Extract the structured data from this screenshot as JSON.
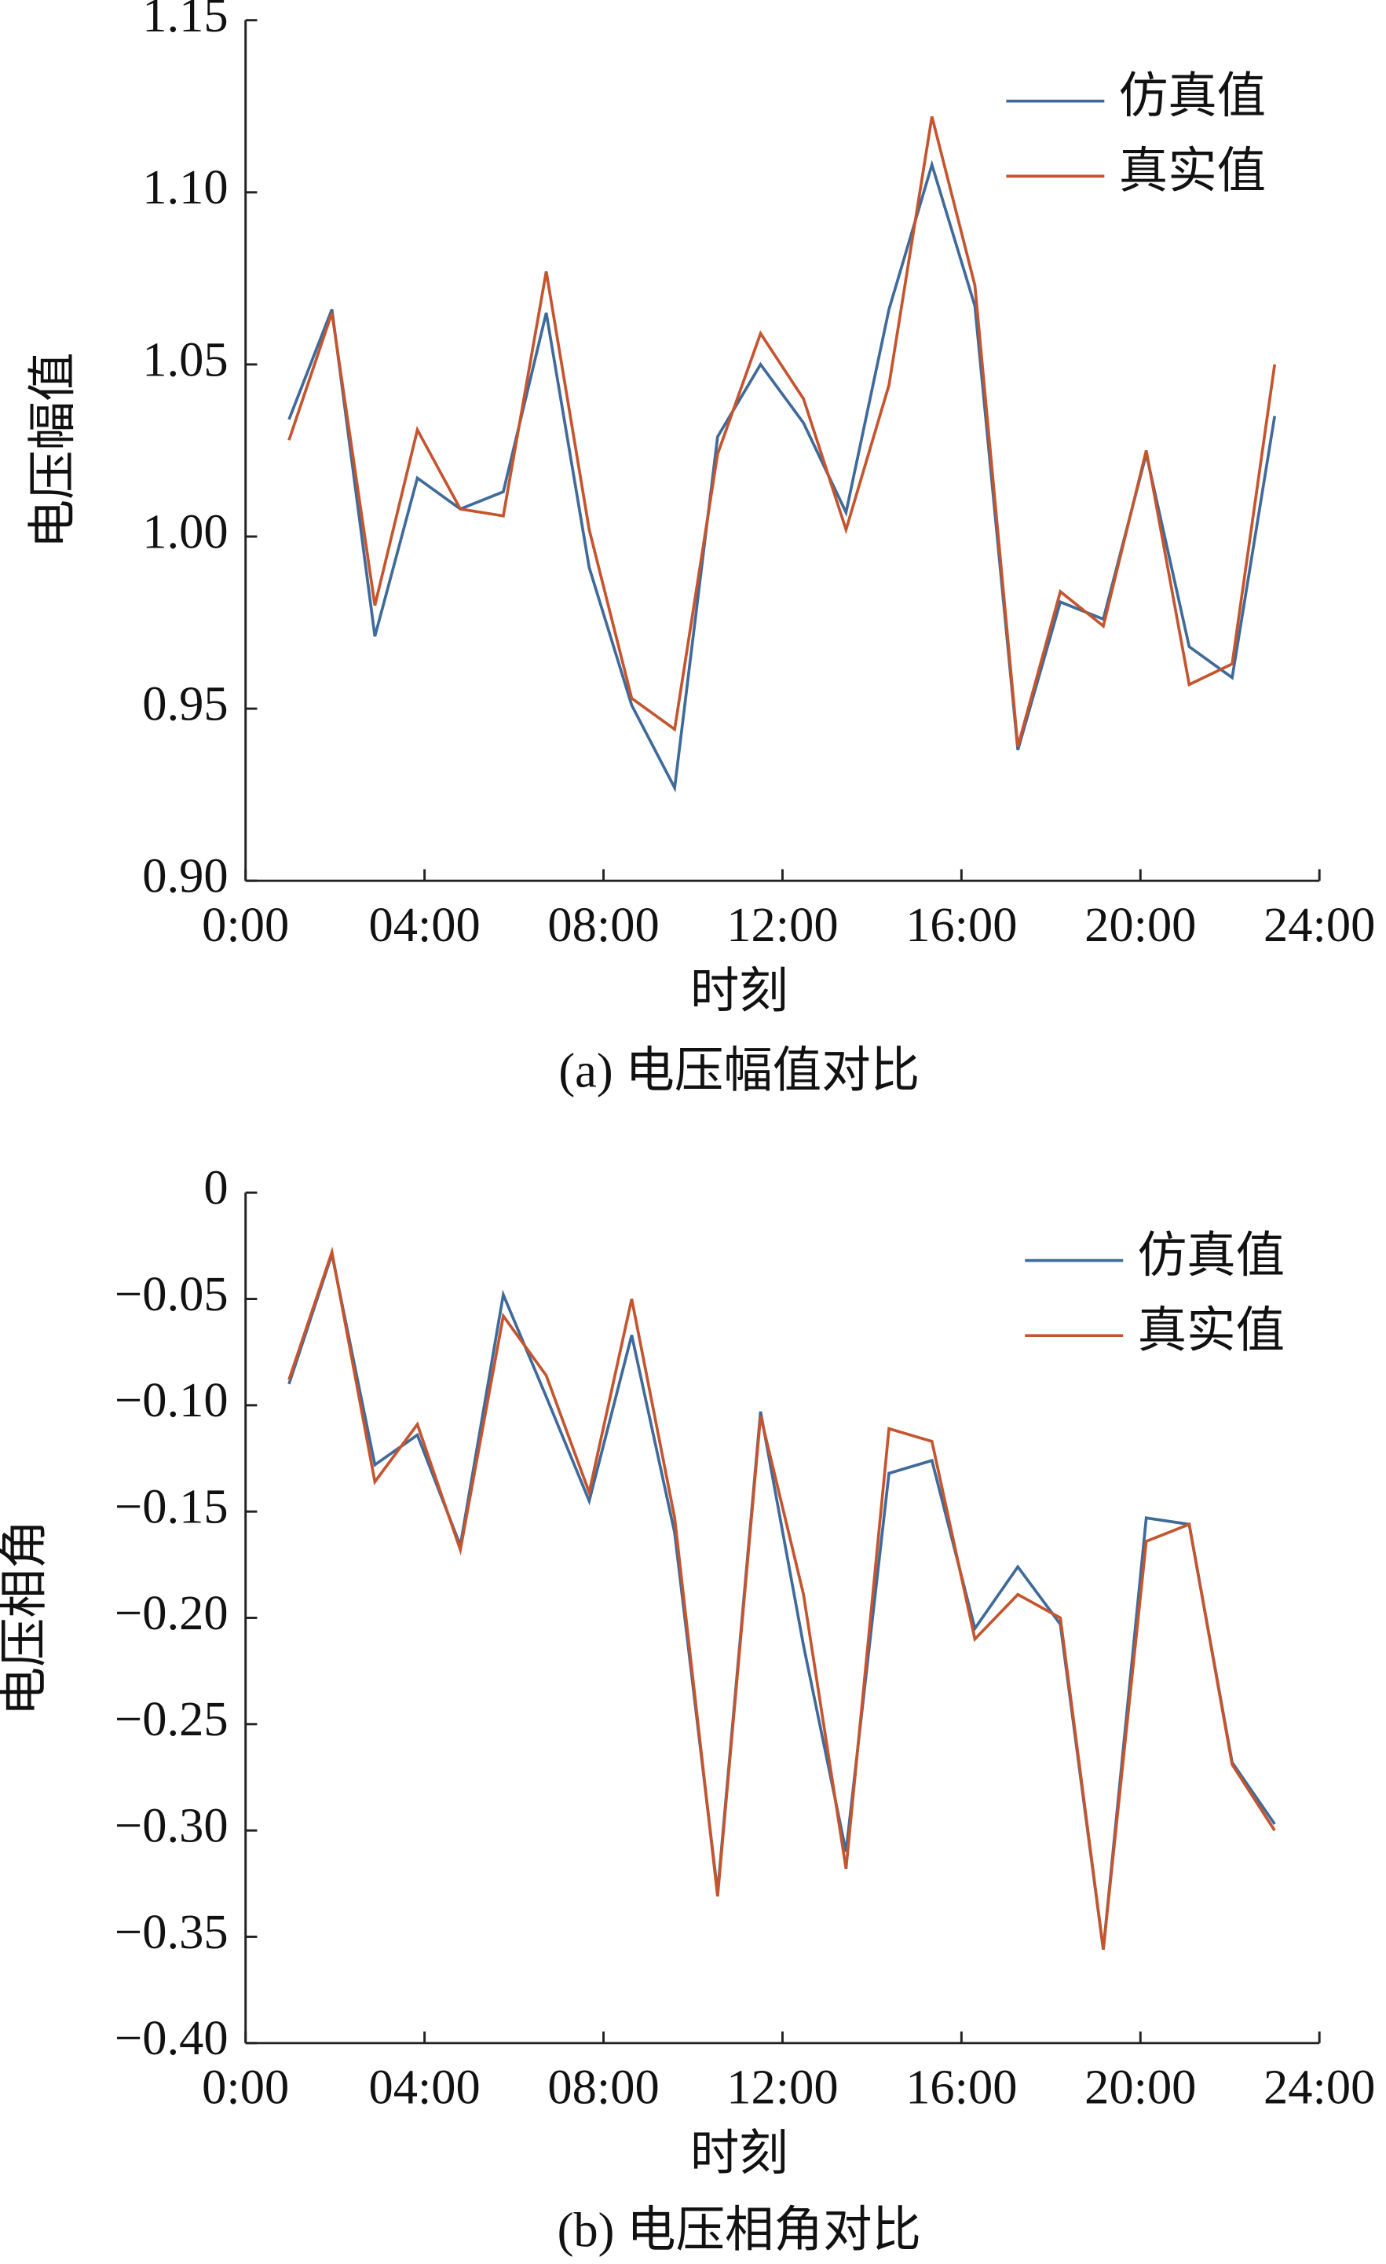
{
  "chart_data": [
    {
      "type": "line",
      "caption": "(a) 电压幅值对比",
      "xlabel": "时刻",
      "ylabel": "电压幅值",
      "x": [
        0.97,
        1.93,
        2.89,
        3.84,
        4.8,
        5.76,
        6.72,
        7.68,
        8.63,
        9.59,
        10.55,
        11.51,
        12.47,
        13.42,
        14.38,
        15.34,
        16.3,
        17.26,
        18.21,
        19.17,
        20.13,
        21.09,
        22.05,
        23.0
      ],
      "xlim": [
        0,
        24
      ],
      "xticks": [
        {
          "value": 0,
          "label": "0:00"
        },
        {
          "value": 4,
          "label": "04:00"
        },
        {
          "value": 8,
          "label": "08:00"
        },
        {
          "value": 12,
          "label": "12:00"
        },
        {
          "value": 16,
          "label": "16:00"
        },
        {
          "value": 20,
          "label": "20:00"
        },
        {
          "value": 24,
          "label": "24:00"
        }
      ],
      "ylim": [
        0.9,
        1.15
      ],
      "yticks": [
        {
          "value": 0.9,
          "label": "0.90"
        },
        0.95,
        {
          "value": 1.0,
          "label": "1.00"
        },
        1.05,
        {
          "value": 1.1,
          "label": "1.10"
        },
        1.15
      ],
      "legend": "upper right",
      "series": [
        {
          "name": "仿真值",
          "color": "#3f6a9a",
          "values": [
            1.034,
            1.066,
            0.971,
            1.017,
            1.008,
            1.013,
            1.065,
            0.991,
            0.951,
            0.927,
            1.029,
            1.05,
            1.033,
            1.007,
            1.066,
            1.108,
            1.067,
            0.938,
            0.981,
            0.976,
            1.024,
            0.968,
            0.959,
            1.035
          ]
        },
        {
          "name": "真实值",
          "color": "#c4552f",
          "values": [
            1.028,
            1.065,
            0.98,
            1.031,
            1.008,
            1.006,
            1.077,
            1.002,
            0.953,
            0.944,
            1.024,
            1.059,
            1.04,
            1.002,
            1.044,
            1.122,
            1.073,
            0.939,
            0.984,
            0.974,
            1.025,
            0.957,
            0.963,
            1.05
          ]
        }
      ]
    },
    {
      "type": "line",
      "caption": "(b) 电压相角对比",
      "xlabel": "时刻",
      "ylabel": "电压相角",
      "x": [
        0.97,
        1.93,
        2.89,
        3.84,
        4.8,
        5.76,
        6.72,
        7.68,
        8.63,
        9.59,
        10.55,
        11.51,
        12.47,
        13.42,
        14.38,
        15.34,
        16.3,
        17.26,
        18.21,
        19.17,
        20.13,
        21.09,
        22.05,
        23.0
      ],
      "xlim": [
        0,
        24
      ],
      "xticks": [
        {
          "value": 0,
          "label": "0:00"
        },
        {
          "value": 4,
          "label": "04:00"
        },
        {
          "value": 8,
          "label": "08:00"
        },
        {
          "value": 12,
          "label": "12:00"
        },
        {
          "value": 16,
          "label": "16:00"
        },
        {
          "value": 20,
          "label": "20:00"
        },
        {
          "value": 24,
          "label": "24:00"
        }
      ],
      "ylim": [
        -0.4,
        0
      ],
      "yticks": [
        {
          "value": -0.4,
          "label": "−0.40"
        },
        {
          "value": -0.35,
          "label": "−0.35"
        },
        {
          "value": -0.3,
          "label": "−0.30"
        },
        {
          "value": -0.25,
          "label": "−0.25"
        },
        {
          "value": -0.2,
          "label": "−0.20"
        },
        {
          "value": -0.15,
          "label": "−0.15"
        },
        {
          "value": -0.1,
          "label": "−0.10"
        },
        {
          "value": -0.05,
          "label": "−0.05"
        },
        0
      ],
      "legend": "upper right",
      "series": [
        {
          "name": "仿真值",
          "color": "#3f6a9a",
          "values": [
            -0.09,
            -0.029,
            -0.128,
            -0.114,
            -0.166,
            -0.048,
            -0.096,
            -0.145,
            -0.067,
            -0.16,
            -0.329,
            -0.103,
            -0.213,
            -0.31,
            -0.132,
            -0.126,
            -0.205,
            -0.176,
            -0.203,
            -0.356,
            -0.153,
            -0.156,
            -0.268,
            -0.297
          ]
        },
        {
          "name": "真实值",
          "color": "#c4552f",
          "values": [
            -0.088,
            -0.028,
            -0.136,
            -0.109,
            -0.168,
            -0.058,
            -0.086,
            -0.141,
            -0.05,
            -0.153,
            -0.331,
            -0.105,
            -0.189,
            -0.318,
            -0.111,
            -0.117,
            -0.21,
            -0.189,
            -0.2,
            -0.356,
            -0.164,
            -0.156,
            -0.269,
            -0.3
          ]
        }
      ]
    }
  ]
}
